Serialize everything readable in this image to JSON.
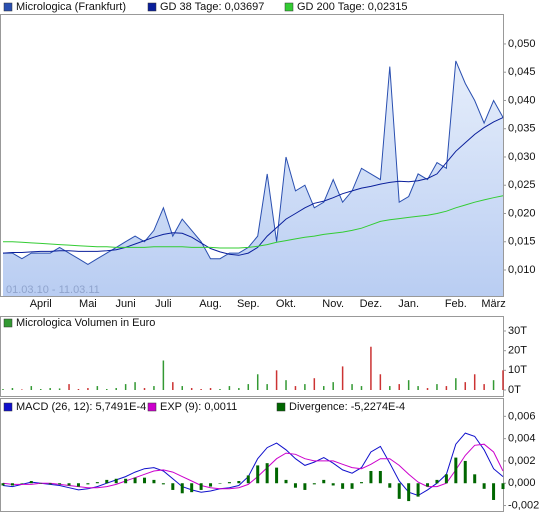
{
  "chart_data": [
    {
      "type": "line",
      "annotation": "01.03.10 - 11.03.11",
      "categories": [
        null,
        null,
        null,
        null,
        "April",
        null,
        null,
        null,
        null,
        "Mai",
        null,
        null,
        null,
        "Juni",
        null,
        null,
        null,
        "Juli",
        null,
        null,
        null,
        null,
        "Aug.",
        null,
        null,
        null,
        "Sep.",
        null,
        null,
        null,
        "Okt.",
        null,
        null,
        null,
        null,
        "Nov.",
        null,
        null,
        null,
        "Dez.",
        null,
        null,
        null,
        "Jan.",
        null,
        null,
        null,
        null,
        "Feb.",
        null,
        null,
        null,
        "März",
        null
      ],
      "series": [
        {
          "name": "Micrologica (Frankfurt)",
          "color": "#2a4fb0",
          "area": true,
          "values": [
            0.013,
            0.013,
            0.012,
            0.013,
            0.013,
            0.013,
            0.014,
            0.013,
            0.012,
            0.011,
            0.012,
            0.013,
            0.014,
            0.015,
            0.016,
            0.015,
            0.017,
            0.021,
            0.016,
            0.019,
            0.017,
            0.015,
            0.012,
            0.012,
            0.013,
            0.013,
            0.014,
            0.016,
            0.027,
            0.015,
            0.03,
            0.024,
            0.025,
            0.021,
            0.022,
            0.026,
            0.022,
            0.024,
            0.028,
            0.027,
            0.026,
            0.046,
            0.022,
            0.023,
            0.027,
            0.026,
            0.029,
            0.028,
            0.047,
            0.043,
            0.04,
            0.036,
            0.04,
            0.037
          ]
        },
        {
          "name": "GD 38 Tage: 0,03697",
          "color": "#0a1f9b",
          "values": [
            0.013,
            0.0131,
            0.0131,
            0.0132,
            0.0133,
            0.0133,
            0.0134,
            0.0134,
            0.0133,
            0.0133,
            0.0133,
            0.0134,
            0.0136,
            0.014,
            0.0146,
            0.0152,
            0.0158,
            0.0163,
            0.0166,
            0.0165,
            0.0158,
            0.0148,
            0.0138,
            0.0132,
            0.0128,
            0.0126,
            0.013,
            0.014,
            0.016,
            0.0175,
            0.019,
            0.02,
            0.021,
            0.0218,
            0.0222,
            0.0228,
            0.0235,
            0.024,
            0.0245,
            0.0248,
            0.0252,
            0.0255,
            0.0257,
            0.0256,
            0.0258,
            0.0262,
            0.027,
            0.029,
            0.031,
            0.0325,
            0.034,
            0.0352,
            0.0362,
            0.03697
          ]
        },
        {
          "name": "GD 200 Tage: 0,02315",
          "color": "#33cc33",
          "values": [
            0.015,
            0.015,
            0.0149,
            0.0148,
            0.0147,
            0.0146,
            0.0145,
            0.0144,
            0.0143,
            0.0142,
            0.0141,
            0.0141,
            0.014,
            0.014,
            0.014,
            0.014,
            0.0141,
            0.0141,
            0.0141,
            0.0141,
            0.014,
            0.014,
            0.014,
            0.0139,
            0.0139,
            0.0139,
            0.014,
            0.0142,
            0.0145,
            0.0149,
            0.0152,
            0.0155,
            0.0158,
            0.016,
            0.0163,
            0.0165,
            0.0167,
            0.017,
            0.0174,
            0.018,
            0.0186,
            0.0189,
            0.0191,
            0.0193,
            0.0195,
            0.0197,
            0.02,
            0.0204,
            0.021,
            0.0215,
            0.022,
            0.0224,
            0.0228,
            0.02315
          ]
        }
      ],
      "ylim": [
        0.0054,
        0.0553
      ],
      "yticks": [
        {
          "value": 0.01,
          "label": "0,010"
        },
        {
          "value": 0.015,
          "label": "0,015"
        },
        {
          "value": 0.02,
          "label": "0,020"
        },
        {
          "value": 0.025,
          "label": "0,025"
        },
        {
          "value": 0.03,
          "label": "0,030"
        },
        {
          "value": 0.035,
          "label": "0,035"
        },
        {
          "value": 0.04,
          "label": "0,040"
        },
        {
          "value": 0.045,
          "label": "0,045"
        },
        {
          "value": 0.05,
          "label": "0,050"
        }
      ]
    },
    {
      "type": "bar",
      "series": [
        {
          "name": "Micrologica Volumen in Euro",
          "color": "#339933",
          "down_color": "#cc3333",
          "values": [
            0.5,
            1,
            0.3,
            2,
            0.5,
            1,
            0.8,
            3,
            0.5,
            1,
            2,
            0.5,
            1,
            3,
            4,
            1,
            2,
            15,
            4,
            2,
            1,
            0.5,
            1,
            0.5,
            2,
            1,
            3,
            8,
            3,
            10,
            5,
            2,
            3,
            6,
            2,
            4,
            12,
            3,
            2,
            22,
            8,
            2,
            3,
            5,
            2,
            1,
            3,
            2,
            6,
            4,
            8,
            3,
            5,
            10
          ]
        }
      ],
      "ylim": [
        0,
        30
      ],
      "yticks": [
        {
          "value": 0,
          "label": "0T"
        },
        {
          "value": 10,
          "label": "10T"
        },
        {
          "value": 20,
          "label": "20T"
        },
        {
          "value": 30,
          "label": "30T"
        }
      ]
    },
    {
      "type": "line",
      "series": [
        {
          "name": "MACD (26, 12): 5,7491E-4",
          "color": "#1010cc",
          "values": [
            -0.0002,
            -0.0003,
            -0.0001,
            0.0001,
            0,
            -0.0001,
            -0.0002,
            -0.0004,
            -0.0006,
            -0.0005,
            -0.0003,
            0,
            0.0003,
            0.0006,
            0.001,
            0.0013,
            0.0014,
            0.0011,
            0.0004,
            -0.0003,
            -0.0006,
            -0.0008,
            -0.0007,
            -0.0005,
            -0.0004,
            -0.0002,
            0.0006,
            0.0022,
            0.0032,
            0.0036,
            0.003,
            0.0022,
            0.0016,
            0.0019,
            0.0023,
            0.0018,
            0.0012,
            0.0009,
            0.0014,
            0.0028,
            0.0033,
            0.0018,
            0.0002,
            -0.0008,
            -0.0011,
            -0.0006,
            0,
            0.0008,
            0.0035,
            0.0045,
            0.0042,
            0.003,
            0.0013,
            0.0006
          ]
        },
        {
          "name": "EXP (9): 0,0011",
          "color": "#cc00cc",
          "values": [
            0,
            -0.0001,
            -0.0001,
            -0.0001,
            0,
            0,
            -0.0001,
            -0.0002,
            -0.0003,
            -0.0004,
            -0.0004,
            -0.0003,
            -0.0001,
            0.0002,
            0.0005,
            0.0008,
            0.0011,
            0.0012,
            0.001,
            0.0006,
            0.0002,
            -0.0002,
            -0.0004,
            -0.0005,
            -0.0005,
            -0.0004,
            -0.0001,
            0.0006,
            0.0014,
            0.0022,
            0.0027,
            0.0026,
            0.0022,
            0.002,
            0.002,
            0.002,
            0.0017,
            0.0014,
            0.0013,
            0.0017,
            0.0022,
            0.0022,
            0.0016,
            0.0008,
            0.0001,
            -0.0003,
            -0.0003,
            0,
            0.0012,
            0.0025,
            0.0034,
            0.0035,
            0.0028,
            0.0011
          ]
        },
        {
          "name": "Divergence: -5,2274E-4",
          "color": "#006600",
          "bars": true,
          "values": [
            -0.0002,
            -0.0002,
            0,
            0.0002,
            0,
            -0.0001,
            -0.0001,
            -0.0002,
            -0.0003,
            -0.0001,
            0.0001,
            0.0003,
            0.0004,
            0.0004,
            0.0005,
            0.0005,
            0.0003,
            -0.0001,
            -0.0006,
            -0.0009,
            -0.0008,
            -0.0006,
            -0.0003,
            0,
            0.0001,
            0.0002,
            0.0007,
            0.0016,
            0.0018,
            0.0014,
            0.0003,
            -0.0004,
            -0.0006,
            -0.0001,
            0.0003,
            -0.0002,
            -0.0005,
            -0.0005,
            0.0001,
            0.0011,
            0.0011,
            -0.0004,
            -0.0014,
            -0.0016,
            -0.0012,
            -0.0003,
            0.0003,
            0.0008,
            0.0023,
            0.002,
            0.0008,
            -0.0005,
            -0.0015,
            -0.00052
          ]
        }
      ],
      "ylim": [
        -0.0024,
        0.0063
      ],
      "yticks": [
        {
          "value": -0.002,
          "label": "-0,002"
        },
        {
          "value": 0,
          "label": "0,000"
        },
        {
          "value": 0.002,
          "label": "0,002"
        },
        {
          "value": 0.004,
          "label": "0,004"
        },
        {
          "value": 0.006,
          "label": "0,006"
        }
      ]
    }
  ]
}
